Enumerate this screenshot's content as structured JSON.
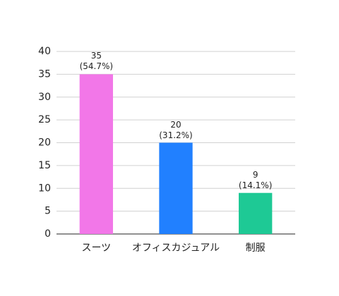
{
  "chart_data": {
    "type": "bar",
    "categories": [
      "スーツ",
      "オフィスカジュアル",
      "制服"
    ],
    "values": [
      35,
      20,
      9
    ],
    "value_labels": [
      "35\n(54.7%)",
      "20\n(31.2%)",
      "9\n(14.1%)"
    ],
    "colors": [
      "#f277e8",
      "#2180ff",
      "#1ec995"
    ],
    "ylim": [
      0,
      40
    ],
    "yticks": [
      0,
      5,
      10,
      15,
      20,
      25,
      30,
      35,
      40
    ],
    "grid": true
  }
}
